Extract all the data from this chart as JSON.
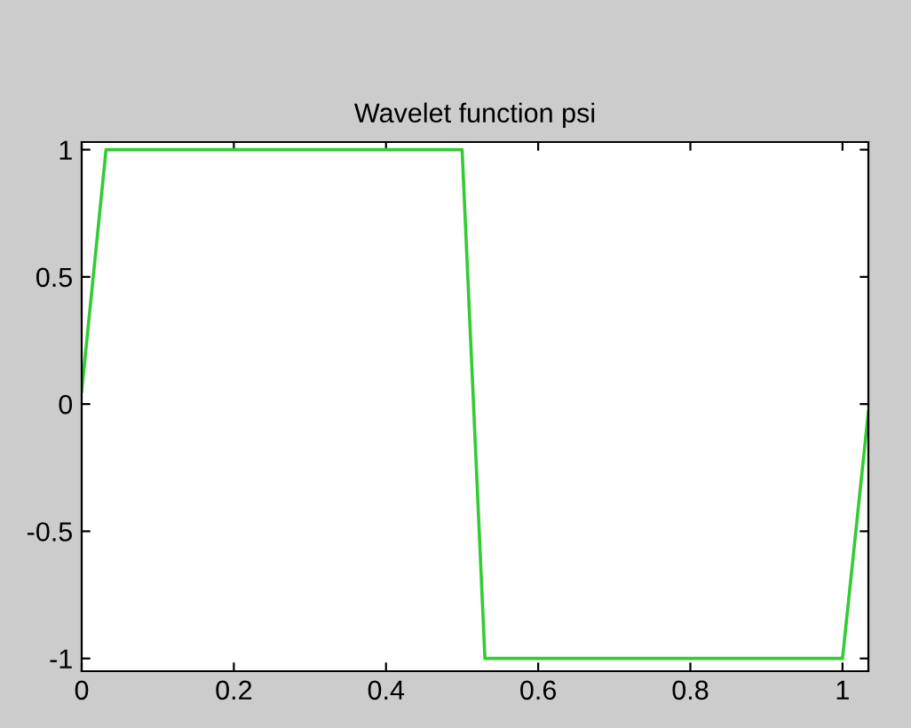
{
  "chart_data": {
    "type": "line",
    "title": "Wavelet function psi",
    "x": [
      0,
      0.032,
      0.5,
      0.53,
      1.0,
      1.034
    ],
    "series": [
      {
        "color": "#33cc33",
        "values": [
          0.05,
          1,
          1,
          -1,
          -1,
          -0.03
        ]
      }
    ],
    "xlim": [
      0,
      1.034
    ],
    "ylim": [
      -1.05,
      1.03
    ],
    "xticks": [
      0,
      0.2,
      0.4,
      0.6,
      0.8,
      1
    ],
    "yticks": [
      -1,
      -0.5,
      0,
      0.5,
      1
    ],
    "grid": false,
    "legend": false,
    "marker": "none",
    "line_style": "solid"
  }
}
